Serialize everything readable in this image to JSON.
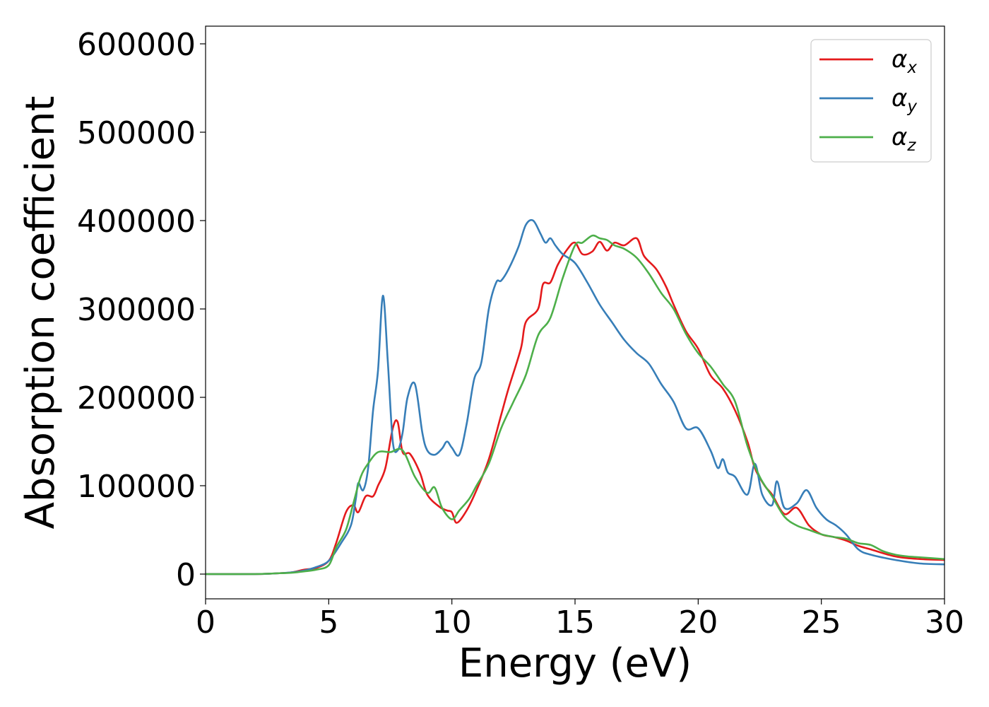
{
  "chart_data": {
    "type": "line",
    "title": "",
    "xlabel": "Energy (eV)",
    "ylabel": "Absorption coefficient",
    "xlim": [
      0,
      30
    ],
    "ylim": [
      -28000,
      620000
    ],
    "xticks": [
      0,
      5,
      10,
      15,
      20,
      25,
      30
    ],
    "yticks": [
      0,
      100000,
      200000,
      300000,
      400000,
      500000,
      600000
    ],
    "grid": false,
    "legend_position": "top-right",
    "series": [
      {
        "name": "αx",
        "symbol": "α",
        "subscript": "x",
        "color": "#e41a1c",
        "x": [
          0,
          2,
          3,
          3.5,
          4,
          4.5,
          5,
          5.3,
          5.7,
          6,
          6.2,
          6.5,
          6.8,
          7,
          7.3,
          7.6,
          7.8,
          8,
          8.3,
          8.7,
          9,
          9.5,
          9.8,
          10,
          10.2,
          10.6,
          11,
          11.5,
          12,
          12.3,
          12.8,
          13,
          13.5,
          13.7,
          14,
          14.3,
          14.7,
          15,
          15.3,
          15.7,
          16,
          16.3,
          16.6,
          17,
          17.5,
          17.8,
          18.3,
          18.7,
          19,
          19.5,
          20,
          20.5,
          21,
          21.5,
          22,
          22.3,
          22.7,
          23,
          23.5,
          24,
          24.5,
          25,
          25.5,
          26,
          26.5,
          27,
          28,
          29,
          30
        ],
        "y": [
          0,
          0,
          1000,
          2000,
          5000,
          7000,
          15000,
          35000,
          70000,
          78000,
          70000,
          88000,
          88000,
          100000,
          120000,
          165000,
          172000,
          138000,
          136000,
          115000,
          90000,
          76000,
          72000,
          70000,
          58000,
          72000,
          95000,
          130000,
          180000,
          210000,
          255000,
          285000,
          300000,
          328000,
          330000,
          350000,
          368000,
          375000,
          362000,
          365000,
          376000,
          366000,
          375000,
          372000,
          380000,
          360000,
          345000,
          325000,
          305000,
          275000,
          255000,
          225000,
          210000,
          185000,
          150000,
          120000,
          100000,
          90000,
          68000,
          75000,
          55000,
          45000,
          42000,
          38000,
          32000,
          28000,
          20000,
          17000,
          16000
        ]
      },
      {
        "name": "αy",
        "symbol": "α",
        "subscript": "y",
        "color": "#377eb8",
        "x": [
          0,
          2,
          3,
          3.5,
          4,
          4.5,
          5,
          5.5,
          5.9,
          6.1,
          6.2,
          6.4,
          6.6,
          6.8,
          7,
          7.2,
          7.4,
          7.6,
          7.8,
          8,
          8.2,
          8.5,
          8.8,
          9,
          9.3,
          9.6,
          9.8,
          10,
          10.3,
          10.6,
          10.9,
          11.2,
          11.5,
          11.8,
          12,
          12.3,
          12.7,
          13,
          13.3,
          13.6,
          13.8,
          14,
          14.2,
          14.5,
          15,
          15.5,
          16,
          16.5,
          17,
          17.5,
          18,
          18.5,
          19,
          19.5,
          20,
          20.5,
          20.8,
          21,
          21.2,
          21.5,
          22,
          22.3,
          22.6,
          23,
          23.2,
          23.5,
          24,
          24.4,
          24.8,
          25.2,
          25.6,
          26,
          26.5,
          27,
          28,
          29,
          30
        ],
        "y": [
          0,
          0,
          1000,
          2000,
          4000,
          8000,
          15000,
          35000,
          55000,
          85000,
          103000,
          95000,
          120000,
          185000,
          230000,
          315000,
          240000,
          150000,
          140000,
          160000,
          200000,
          215000,
          160000,
          140000,
          135000,
          142000,
          150000,
          143000,
          135000,
          170000,
          220000,
          240000,
          300000,
          330000,
          332000,
          345000,
          370000,
          395000,
          400000,
          385000,
          375000,
          380000,
          372000,
          362000,
          352000,
          330000,
          305000,
          285000,
          265000,
          250000,
          238000,
          215000,
          195000,
          165000,
          165000,
          140000,
          120000,
          130000,
          115000,
          110000,
          90000,
          125000,
          90000,
          78000,
          105000,
          75000,
          80000,
          95000,
          75000,
          62000,
          55000,
          45000,
          28000,
          22000,
          16000,
          12000,
          11000
        ]
      },
      {
        "name": "αz",
        "symbol": "α",
        "subscript": "z",
        "color": "#4daf4a",
        "x": [
          0,
          2,
          3,
          3.5,
          4,
          4.5,
          5,
          5.3,
          5.7,
          6,
          6.3,
          6.6,
          7,
          7.5,
          8,
          8.5,
          9,
          9.3,
          9.6,
          10,
          10.3,
          10.7,
          11,
          11.5,
          12,
          12.5,
          13,
          13.5,
          14,
          14.5,
          15,
          15.3,
          15.7,
          16,
          16.3,
          16.6,
          17,
          17.5,
          18,
          18.5,
          19,
          19.5,
          20,
          20.5,
          21,
          21.5,
          22,
          22.5,
          23,
          23.5,
          24,
          24.5,
          25,
          25.5,
          26,
          26.5,
          27,
          27.5,
          28,
          28.5,
          29,
          30
        ],
        "y": [
          0,
          0,
          1000,
          1500,
          3000,
          5000,
          10000,
          30000,
          50000,
          80000,
          110000,
          125000,
          138000,
          138000,
          140000,
          110000,
          92000,
          98000,
          75000,
          62000,
          72000,
          85000,
          100000,
          125000,
          165000,
          195000,
          225000,
          270000,
          290000,
          335000,
          372000,
          375000,
          383000,
          380000,
          378000,
          372000,
          368000,
          358000,
          340000,
          318000,
          300000,
          272000,
          250000,
          235000,
          215000,
          195000,
          145000,
          110000,
          88000,
          65000,
          55000,
          50000,
          45000,
          42000,
          40000,
          35000,
          33000,
          26000,
          22000,
          20000,
          19000,
          17000
        ]
      }
    ]
  }
}
